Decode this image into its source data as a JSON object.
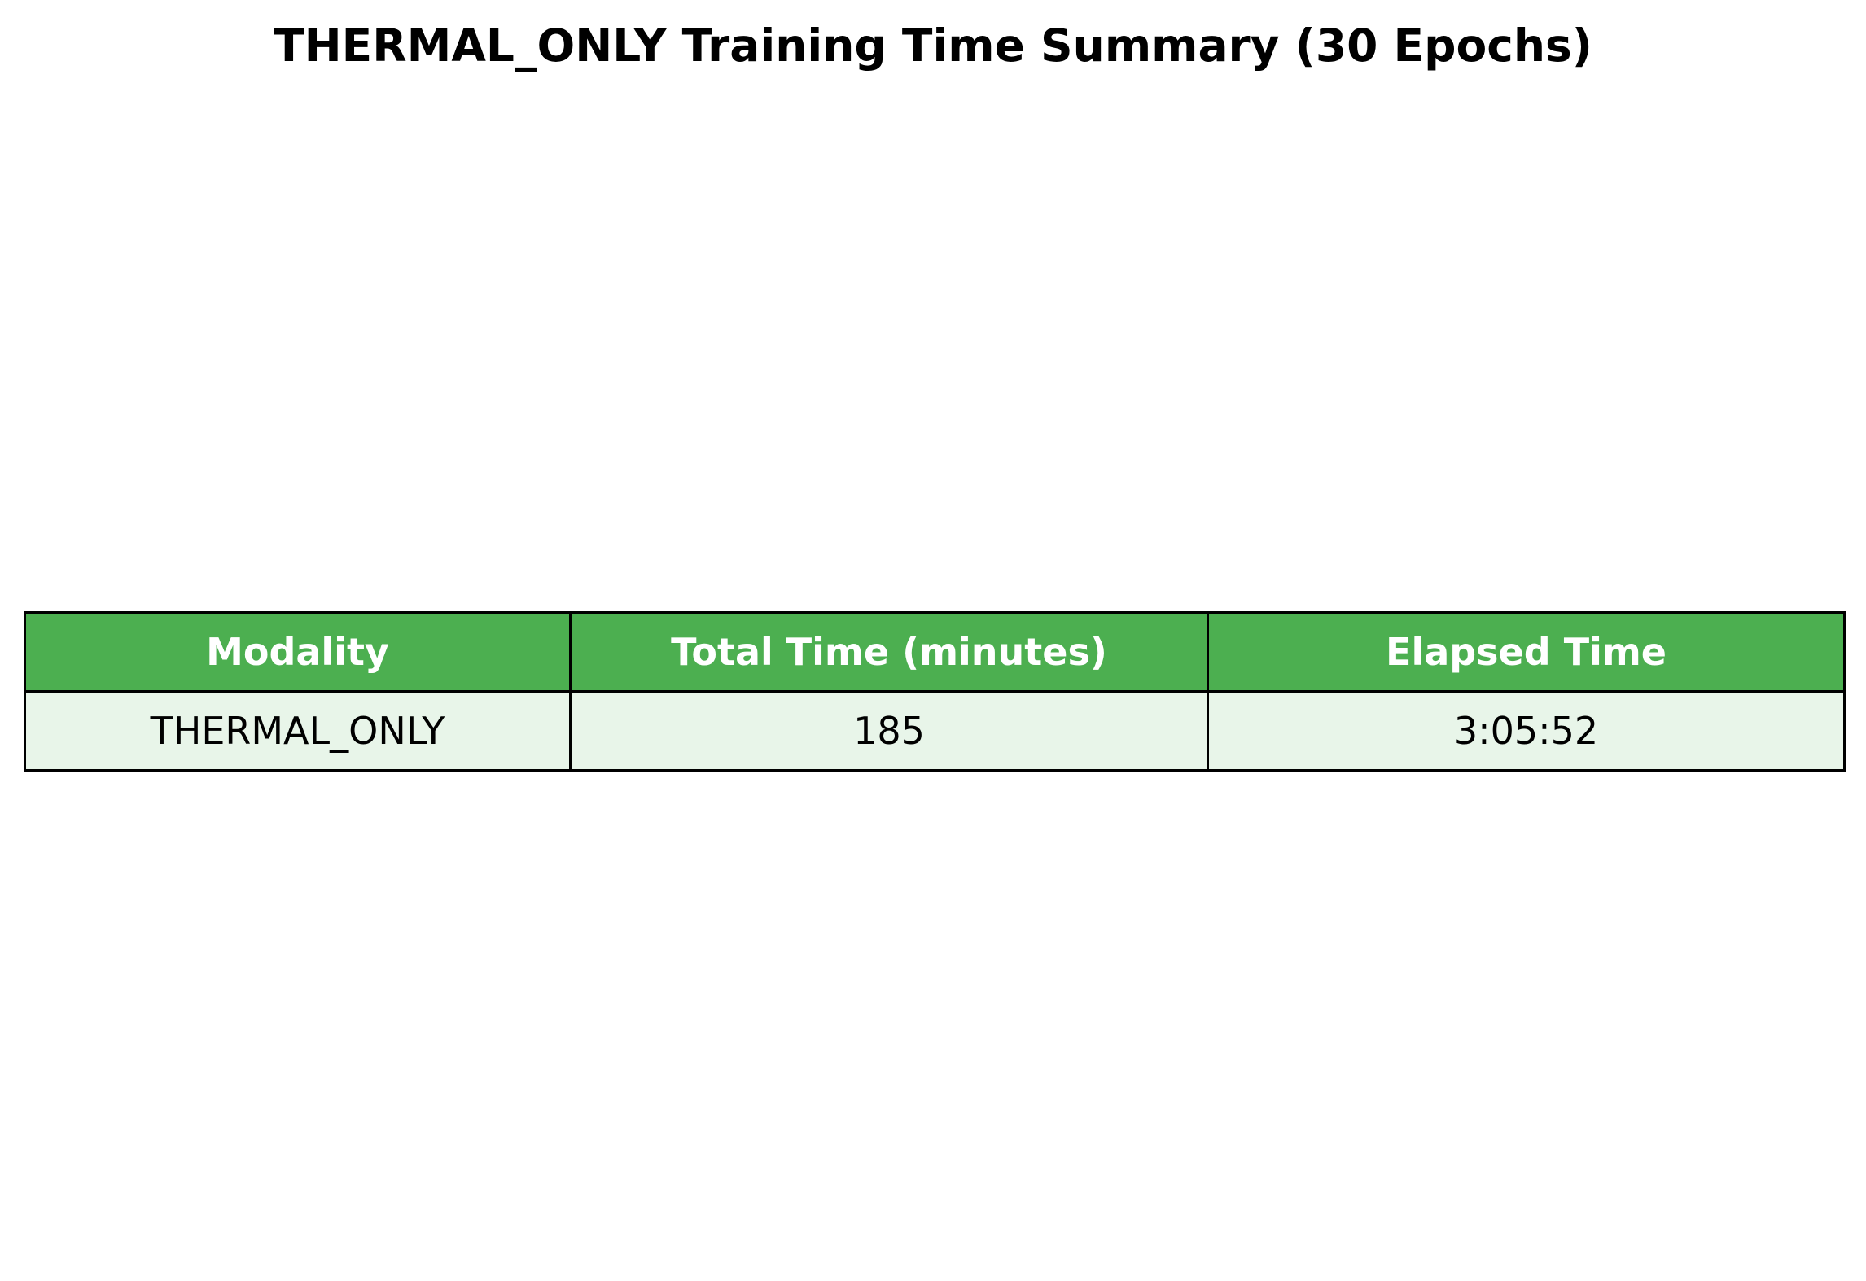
{
  "chart_data": {
    "type": "table",
    "title": "THERMAL_ONLY Training Time Summary (30 Epochs)",
    "columns": [
      "Modality",
      "Total Time (minutes)",
      "Elapsed Time"
    ],
    "rows": [
      [
        "THERMAL_ONLY",
        "185",
        "3:05:52"
      ]
    ],
    "colors": {
      "header_background": "#4caf50",
      "header_text": "#ffffff",
      "row_background": "#e8f5e9",
      "border": "#000000"
    }
  }
}
